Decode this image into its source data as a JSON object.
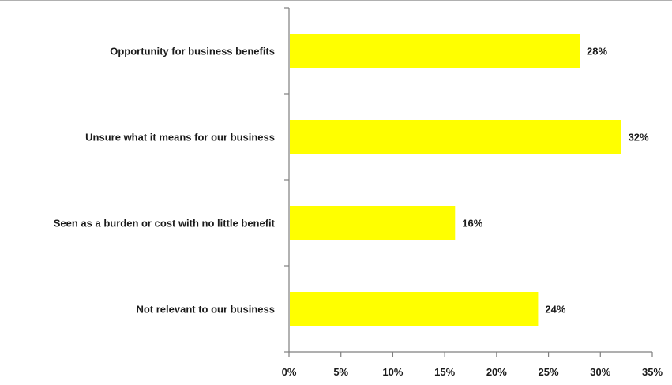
{
  "chart_data": {
    "type": "bar",
    "orientation": "horizontal",
    "categories": [
      "Opportunity for business benefits",
      "Unsure what it means for our business",
      "Seen as a burden or cost with no little benefit",
      "Not relevant to our business"
    ],
    "values": [
      28,
      32,
      16,
      24
    ],
    "data_labels": [
      "28%",
      "32%",
      "16%",
      "24%"
    ],
    "xlim": [
      0,
      35
    ],
    "x_ticks": [
      0,
      5,
      10,
      15,
      20,
      25,
      30,
      35
    ],
    "x_tick_labels": [
      "0%",
      "5%",
      "10%",
      "15%",
      "20%",
      "25%",
      "30%",
      "35%"
    ],
    "title": "",
    "xlabel": "",
    "ylabel": "",
    "grid": false,
    "legend": "none",
    "bar_color": "#ffff00"
  }
}
